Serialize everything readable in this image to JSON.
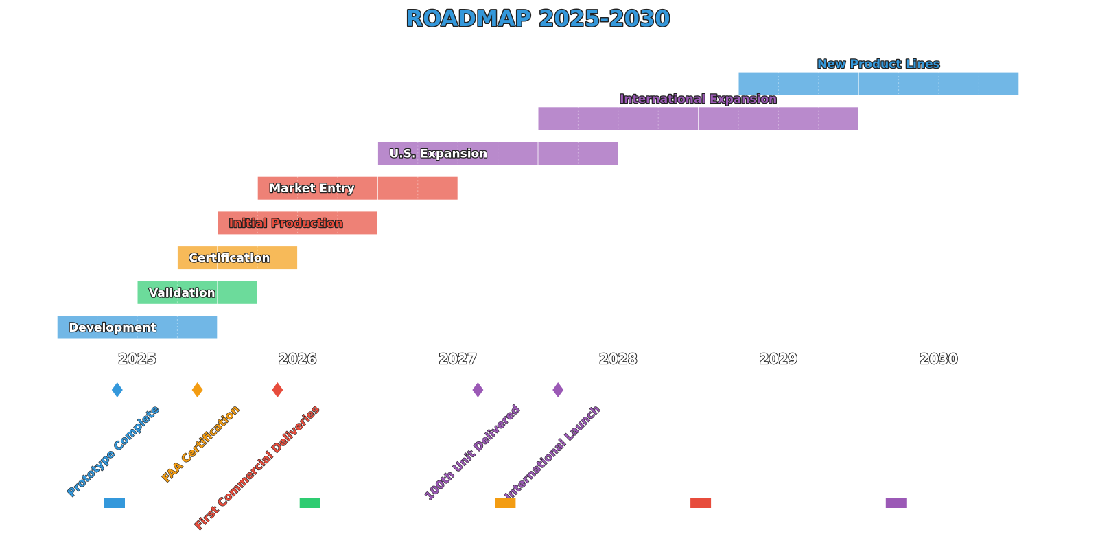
{
  "chart_data": {
    "type": "gantt",
    "title": "ROADMAP 2025-2030",
    "x_ticks": [
      "2025",
      "2026",
      "2027",
      "2028",
      "2029",
      "2030"
    ],
    "xlim": [
      2024.5,
      2030.5
    ],
    "tasks": [
      {
        "name": "Development",
        "start": 2024.5,
        "end": 2025.5,
        "color": "#3498db",
        "label_color": "#ffffff"
      },
      {
        "name": "Validation",
        "start": 2025.0,
        "end": 2025.75,
        "color": "#2ecc71",
        "label_color": "#ffffff"
      },
      {
        "name": "Certification",
        "start": 2025.25,
        "end": 2026.0,
        "color": "#f39c12",
        "label_color": "#ffffff"
      },
      {
        "name": "Initial Production",
        "start": 2025.5,
        "end": 2026.5,
        "color": "#e74c3c",
        "label_color": "#e74c3c",
        "label_above": true
      },
      {
        "name": "Market Entry",
        "start": 2025.75,
        "end": 2027.0,
        "color": "#e74c3c",
        "label_color": "#ffffff"
      },
      {
        "name": "U.S. Expansion",
        "start": 2026.5,
        "end": 2028.0,
        "color": "#9b59b6",
        "label_color": "#ffffff"
      },
      {
        "name": "International Expansion",
        "start": 2027.5,
        "end": 2029.5,
        "color": "#9b59b6",
        "label_color": "#9b59b6",
        "label_above": true
      },
      {
        "name": "New Product Lines",
        "start": 2028.75,
        "end": 2030.5,
        "color": "#3498db",
        "label_color": "#3498db",
        "label_above": true
      }
    ],
    "milestones": [
      {
        "name": "Prototype Complete",
        "date": 2024.875,
        "color": "#3498db"
      },
      {
        "name": "FAA Certification",
        "date": 2025.375,
        "color": "#f39c12"
      },
      {
        "name": "First Commercial Deliveries",
        "date": 2025.875,
        "color": "#e74c3c"
      },
      {
        "name": "100th Unit Delivered",
        "date": 2027.125,
        "color": "#9b59b6"
      },
      {
        "name": "International Launch",
        "date": 2027.625,
        "color": "#9b59b6"
      }
    ],
    "legend_colors": [
      "#3498db",
      "#2ecc71",
      "#f39c12",
      "#e74c3c",
      "#9b59b6"
    ],
    "legend_placement": "bottom",
    "grid": false
  }
}
